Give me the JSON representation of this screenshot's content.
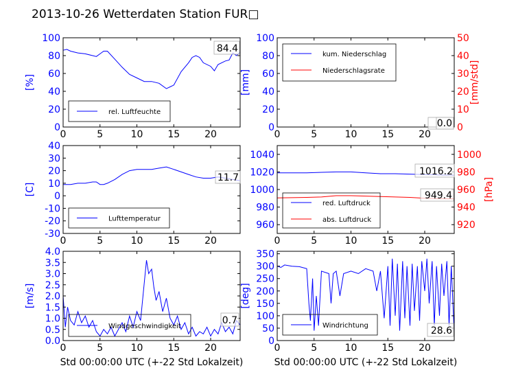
{
  "title": "2013-10-26 Wetterdaten Station FUR□",
  "colors": {
    "blue": "#0000ff",
    "red": "#ff0000",
    "black": "#000000"
  },
  "chart_data": [
    {
      "type": "line",
      "panel": "humidity",
      "ylabel": "[%]",
      "xlim": [
        0,
        24
      ],
      "ylim": [
        0,
        100
      ],
      "xticks": [
        0,
        5,
        10,
        15,
        20
      ],
      "yticks": [
        0,
        20,
        40,
        60,
        80,
        100
      ],
      "legend_position": "lower-left",
      "value_box": "84.4",
      "series": [
        {
          "name": "rel. Luftfeuchte",
          "color": "#0000ff",
          "x": [
            0,
            0.5,
            1,
            2,
            3,
            4,
            4.5,
            5,
            5.5,
            6,
            7,
            8,
            9,
            10,
            11,
            12,
            13,
            14,
            14.5,
            15,
            16,
            17,
            17.5,
            18,
            18.5,
            19,
            20,
            20.5,
            21,
            22,
            22.5,
            23,
            23.5,
            24
          ],
          "y": [
            86,
            87,
            85,
            83,
            82,
            80,
            79,
            82,
            85,
            85,
            76,
            67,
            59,
            55,
            51,
            51,
            49,
            43,
            45,
            47,
            62,
            72,
            78,
            80,
            78,
            72,
            68,
            63,
            70,
            74,
            75,
            83,
            80,
            84
          ]
        }
      ]
    },
    {
      "type": "line",
      "panel": "precipitation",
      "ylabel": "[mm]",
      "y2label": "[mm/std]",
      "xlim": [
        0,
        24
      ],
      "ylim": [
        0,
        100
      ],
      "y2lim": [
        0,
        50
      ],
      "xticks": [
        0,
        5,
        10,
        15,
        20
      ],
      "yticks": [
        0,
        20,
        40,
        60,
        80,
        100
      ],
      "y2ticks": [
        0,
        10,
        20,
        30,
        40,
        50
      ],
      "legend_position": "upper-left",
      "value_boxes": [
        "0.0",
        "0.0"
      ],
      "series": [
        {
          "name": "kum. Niederschlag",
          "color": "#0000ff",
          "axis": "left",
          "x": [
            0,
            24
          ],
          "y": [
            0,
            0
          ]
        },
        {
          "name": "Niederschlagsrate",
          "color": "#ff0000",
          "axis": "right",
          "x": [
            0,
            24
          ],
          "y": [
            0,
            0
          ]
        }
      ]
    },
    {
      "type": "line",
      "panel": "temperature",
      "ylabel": "[C]",
      "xlim": [
        0,
        24
      ],
      "ylim": [
        -30,
        40
      ],
      "xticks": [
        0,
        5,
        10,
        15,
        20
      ],
      "yticks": [
        -30,
        -20,
        -10,
        0,
        10,
        20,
        30,
        40
      ],
      "legend_position": "lower-left",
      "value_box": "11.7",
      "series": [
        {
          "name": "Lufttemperatur",
          "color": "#0000ff",
          "x": [
            0,
            1,
            2,
            3,
            4,
            4.5,
            5,
            5.5,
            6,
            7,
            8,
            9,
            10,
            11,
            12,
            13,
            14,
            15,
            16,
            17,
            18,
            19,
            20,
            21,
            22,
            23,
            24
          ],
          "y": [
            9,
            9,
            10,
            10,
            11,
            11,
            9,
            9,
            10,
            13,
            17,
            20,
            21,
            21,
            21,
            22,
            23,
            21,
            19,
            17,
            15,
            14,
            14,
            15,
            14,
            13,
            12
          ]
        }
      ]
    },
    {
      "type": "line",
      "panel": "pressure",
      "ylabel": "[hPa]",
      "xlim": [
        0,
        24
      ],
      "ylim": [
        950,
        1050
      ],
      "y2lim": [
        910,
        1010
      ],
      "xticks": [
        0,
        5,
        10,
        15,
        20
      ],
      "yticks": [
        960,
        980,
        1000,
        1020,
        1040
      ],
      "y2ticks": [
        920,
        940,
        960,
        980,
        1000
      ],
      "legend_position": "lower-left",
      "value_boxes": [
        "1016.2",
        "949.4"
      ],
      "series": [
        {
          "name": "red. Luftdruck",
          "color": "#0000ff",
          "axis": "left",
          "x": [
            0,
            4,
            6,
            8,
            10,
            12,
            14,
            16,
            18,
            20,
            22,
            24
          ],
          "y": [
            1019,
            1019,
            1019.5,
            1020,
            1020,
            1019,
            1018,
            1018,
            1017.5,
            1017,
            1016.5,
            1016.2
          ]
        },
        {
          "name": "abs. Luftdruck",
          "color": "#ff0000",
          "axis": "right",
          "x": [
            0,
            4,
            6,
            8,
            10,
            12,
            14,
            16,
            18,
            20,
            22,
            24
          ],
          "y": [
            950.5,
            951,
            951.5,
            953,
            953,
            952.5,
            952,
            951.5,
            951,
            950,
            949.5,
            949.4
          ]
        }
      ]
    },
    {
      "type": "line",
      "panel": "wind-speed",
      "ylabel": "[m/s]",
      "xlabel": "Std 00:00:00 UTC (+-22 Std Lokalzeit)",
      "xlim": [
        0,
        24
      ],
      "ylim": [
        0,
        4
      ],
      "xticks": [
        0,
        5,
        10,
        15,
        20
      ],
      "yticks": [
        0.0,
        0.5,
        1.0,
        1.5,
        2.0,
        2.5,
        3.0,
        3.5,
        4.0
      ],
      "legend_position": "lower-left",
      "value_box": "0.7",
      "series": [
        {
          "name": "Windgeschwindigkeit",
          "color": "#0000ff",
          "x": [
            0,
            0.3,
            0.6,
            1,
            1.5,
            2,
            2.5,
            3,
            3.5,
            4,
            4.5,
            5,
            5.5,
            6,
            6.5,
            7,
            7.5,
            8,
            8.5,
            9,
            9.5,
            10,
            10.5,
            11,
            11.3,
            11.6,
            12,
            12.3,
            12.6,
            13,
            13.5,
            14,
            14.5,
            15,
            15.5,
            16,
            16.5,
            17,
            17.5,
            18,
            18.5,
            19,
            19.5,
            20,
            20.5,
            21,
            21.5,
            22,
            22.5,
            23,
            23.5,
            24
          ],
          "y": [
            2.0,
            0.6,
            1.5,
            0.9,
            0.7,
            1.3,
            0.8,
            1.1,
            0.6,
            0.9,
            0.4,
            0.2,
            0.5,
            0.3,
            0.6,
            0.2,
            0.5,
            0.8,
            0.4,
            1.1,
            0.6,
            1.3,
            0.9,
            2.6,
            3.6,
            3.0,
            3.2,
            2.4,
            1.8,
            2.2,
            1.3,
            1.9,
            1.0,
            0.7,
            1.1,
            0.5,
            0.8,
            0.3,
            0.6,
            0.2,
            0.4,
            0.3,
            0.6,
            0.2,
            0.5,
            0.3,
            0.8,
            0.4,
            0.6,
            0.3,
            0.9,
            0.7
          ]
        }
      ]
    },
    {
      "type": "line",
      "panel": "wind-direction",
      "ylabel": "[deg]",
      "xlabel": "Std 00:00:00 UTC (+-22 Std Lokalzeit)",
      "xlim": [
        0,
        24
      ],
      "ylim": [
        0,
        360
      ],
      "xticks": [
        0,
        5,
        10,
        15,
        20
      ],
      "yticks": [
        0,
        50,
        100,
        150,
        200,
        250,
        300,
        350
      ],
      "legend_position": "lower-left",
      "value_box": "28.6",
      "series": [
        {
          "name": "Windrichtung",
          "color": "#0000ff",
          "x": [
            0,
            0.5,
            1,
            2,
            3,
            4,
            4.3,
            4.5,
            4.8,
            5,
            5.3,
            5.6,
            6,
            7,
            7.3,
            7.6,
            8,
            8.5,
            9,
            10,
            11,
            12,
            13,
            13.5,
            14,
            14.5,
            15,
            15.3,
            15.6,
            16,
            16.3,
            16.6,
            17,
            17.3,
            17.6,
            18,
            18.3,
            18.6,
            19,
            19.3,
            19.6,
            20,
            20.3,
            20.6,
            21,
            21.3,
            21.6,
            22,
            22.3,
            22.6,
            23,
            23.3,
            23.6,
            24
          ],
          "y": [
            300,
            295,
            305,
            300,
            298,
            290,
            150,
            80,
            250,
            40,
            180,
            60,
            280,
            270,
            150,
            270,
            280,
            180,
            270,
            280,
            270,
            290,
            280,
            200,
            280,
            90,
            300,
            60,
            330,
            100,
            310,
            40,
            320,
            90,
            300,
            60,
            310,
            120,
            300,
            80,
            320,
            200,
            330,
            150,
            320,
            60,
            300,
            100,
            310,
            180,
            320,
            60,
            300,
            30
          ]
        }
      ]
    }
  ]
}
